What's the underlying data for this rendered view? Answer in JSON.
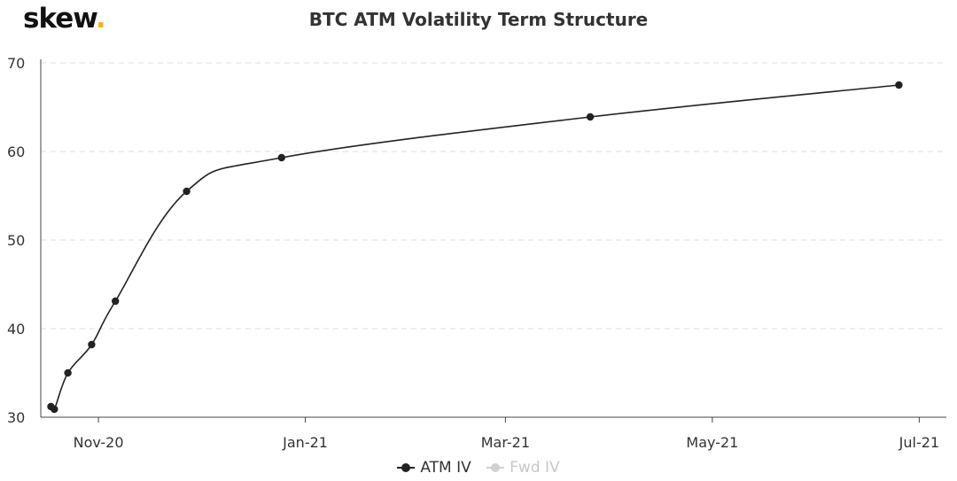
{
  "brand": {
    "name": "skew",
    "dot": "."
  },
  "colors": {
    "line": "#222222",
    "grid": "#dddddd",
    "axis": "#444444",
    "brand_dot": "#f2b705",
    "legend_off": "#c8c8c8"
  },
  "chart_data": {
    "type": "line",
    "title": "BTC ATM Volatility Term Structure",
    "xlabel": "",
    "ylabel": "",
    "x_axis_type": "date",
    "xlim": [
      "2020-10-15",
      "2021-07-09"
    ],
    "ylim": [
      30,
      70
    ],
    "yticks": [
      30,
      40,
      50,
      60,
      70
    ],
    "xticks": [
      {
        "date": "2020-11-01",
        "label": "Nov-20"
      },
      {
        "date": "2021-01-01",
        "label": "Jan-21"
      },
      {
        "date": "2021-03-01",
        "label": "Mar-21"
      },
      {
        "date": "2021-05-01",
        "label": "May-21"
      },
      {
        "date": "2021-07-01",
        "label": "Jul-21"
      }
    ],
    "grid": true,
    "legend_position": "bottom",
    "series": [
      {
        "name": "ATM IV",
        "visible": true,
        "points": [
          {
            "x": "2020-10-18",
            "y": 31.2
          },
          {
            "x": "2020-10-19",
            "y": 30.9
          },
          {
            "x": "2020-10-23",
            "y": 35.0
          },
          {
            "x": "2020-10-30",
            "y": 38.2
          },
          {
            "x": "2020-11-06",
            "y": 43.1
          },
          {
            "x": "2020-11-27",
            "y": 55.5
          },
          {
            "x": "2020-12-25",
            "y": 59.3
          },
          {
            "x": "2021-03-26",
            "y": 63.9
          },
          {
            "x": "2021-06-25",
            "y": 67.5
          }
        ]
      },
      {
        "name": "Fwd IV",
        "visible": false,
        "points": []
      }
    ]
  }
}
